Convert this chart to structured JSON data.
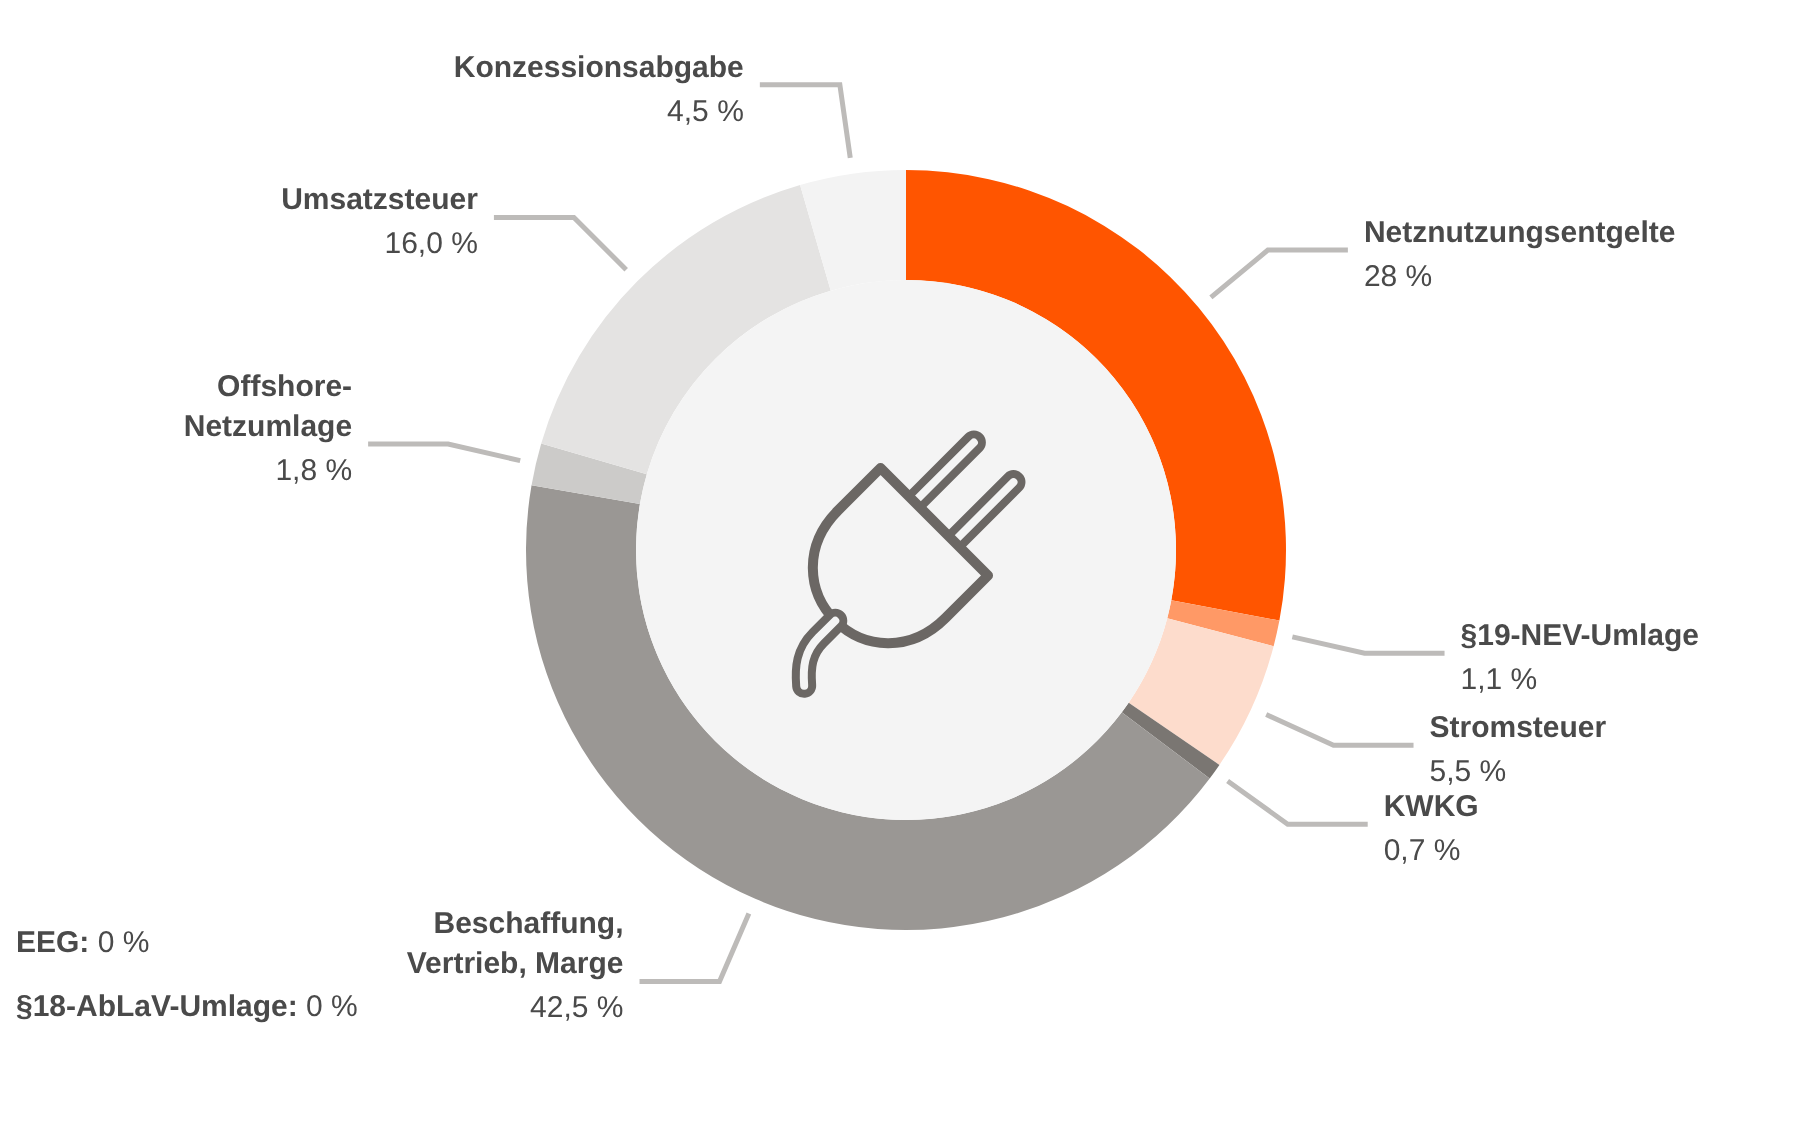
{
  "chart_data": {
    "type": "donut",
    "categories": [
      "Netznutzungsentgelte",
      "§19-NEV-Umlage",
      "Stromsteuer",
      "KWKG",
      "Beschaffung,\nVertrieb, Marge",
      "Offshore-\nNetzumlage",
      "Umsatzsteuer",
      "Konzessionsabgabe"
    ],
    "values": [
      28,
      1.1,
      5.5,
      0.7,
      42.5,
      1.8,
      16.0,
      4.5
    ],
    "value_labels": [
      "28 %",
      "1,1 %",
      "5,5 %",
      "0,7 %",
      "42,5 %",
      "1,8 %",
      "16,0 %",
      "4,5 %"
    ],
    "colors": [
      "#ff5500",
      "#ff9966",
      "#fddccc",
      "#7a7672",
      "#9a9794",
      "#cccbc9",
      "#e4e3e2",
      "#f3f3f3"
    ],
    "annotations": [
      "EEG: 0 %",
      "§18-AbLaV-Umlage: 0 %"
    ]
  }
}
